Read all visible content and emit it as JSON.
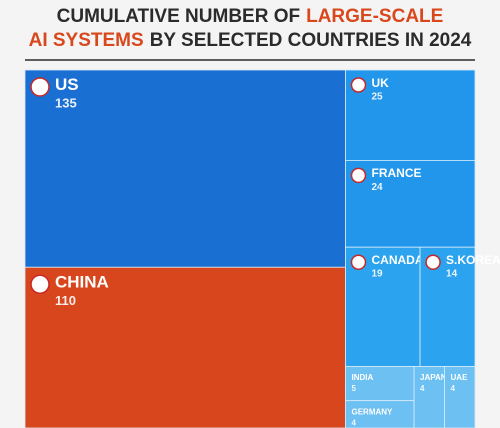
{
  "chart_data": {
    "type": "treemap",
    "title": [
      "CUMULATIVE NUMBER OF",
      "LARGE-SCALE",
      "AI SYSTEMS",
      "BY SELECTED COUNTRIES IN 2024"
    ],
    "title_color": "#2b2b2b",
    "title_highlight_color": "#d9481c",
    "categories": [
      "US",
      "CHINA",
      "UK",
      "FRANCE",
      "CANADA",
      "S.KOREA",
      "INDIA",
      "JAPAN",
      "UAE",
      "GERMANY"
    ],
    "values": [
      135,
      110,
      25,
      24,
      19,
      14,
      5,
      4,
      4,
      4
    ],
    "colors": [
      "#1a6fd3",
      "#d8461d",
      "#2196ea",
      "#2196ea",
      "#2ba3ee",
      "#2ba3ee",
      "#6cc0f2",
      "#6cc0f2",
      "#6cc0f2",
      "#6cc0f2"
    ]
  }
}
